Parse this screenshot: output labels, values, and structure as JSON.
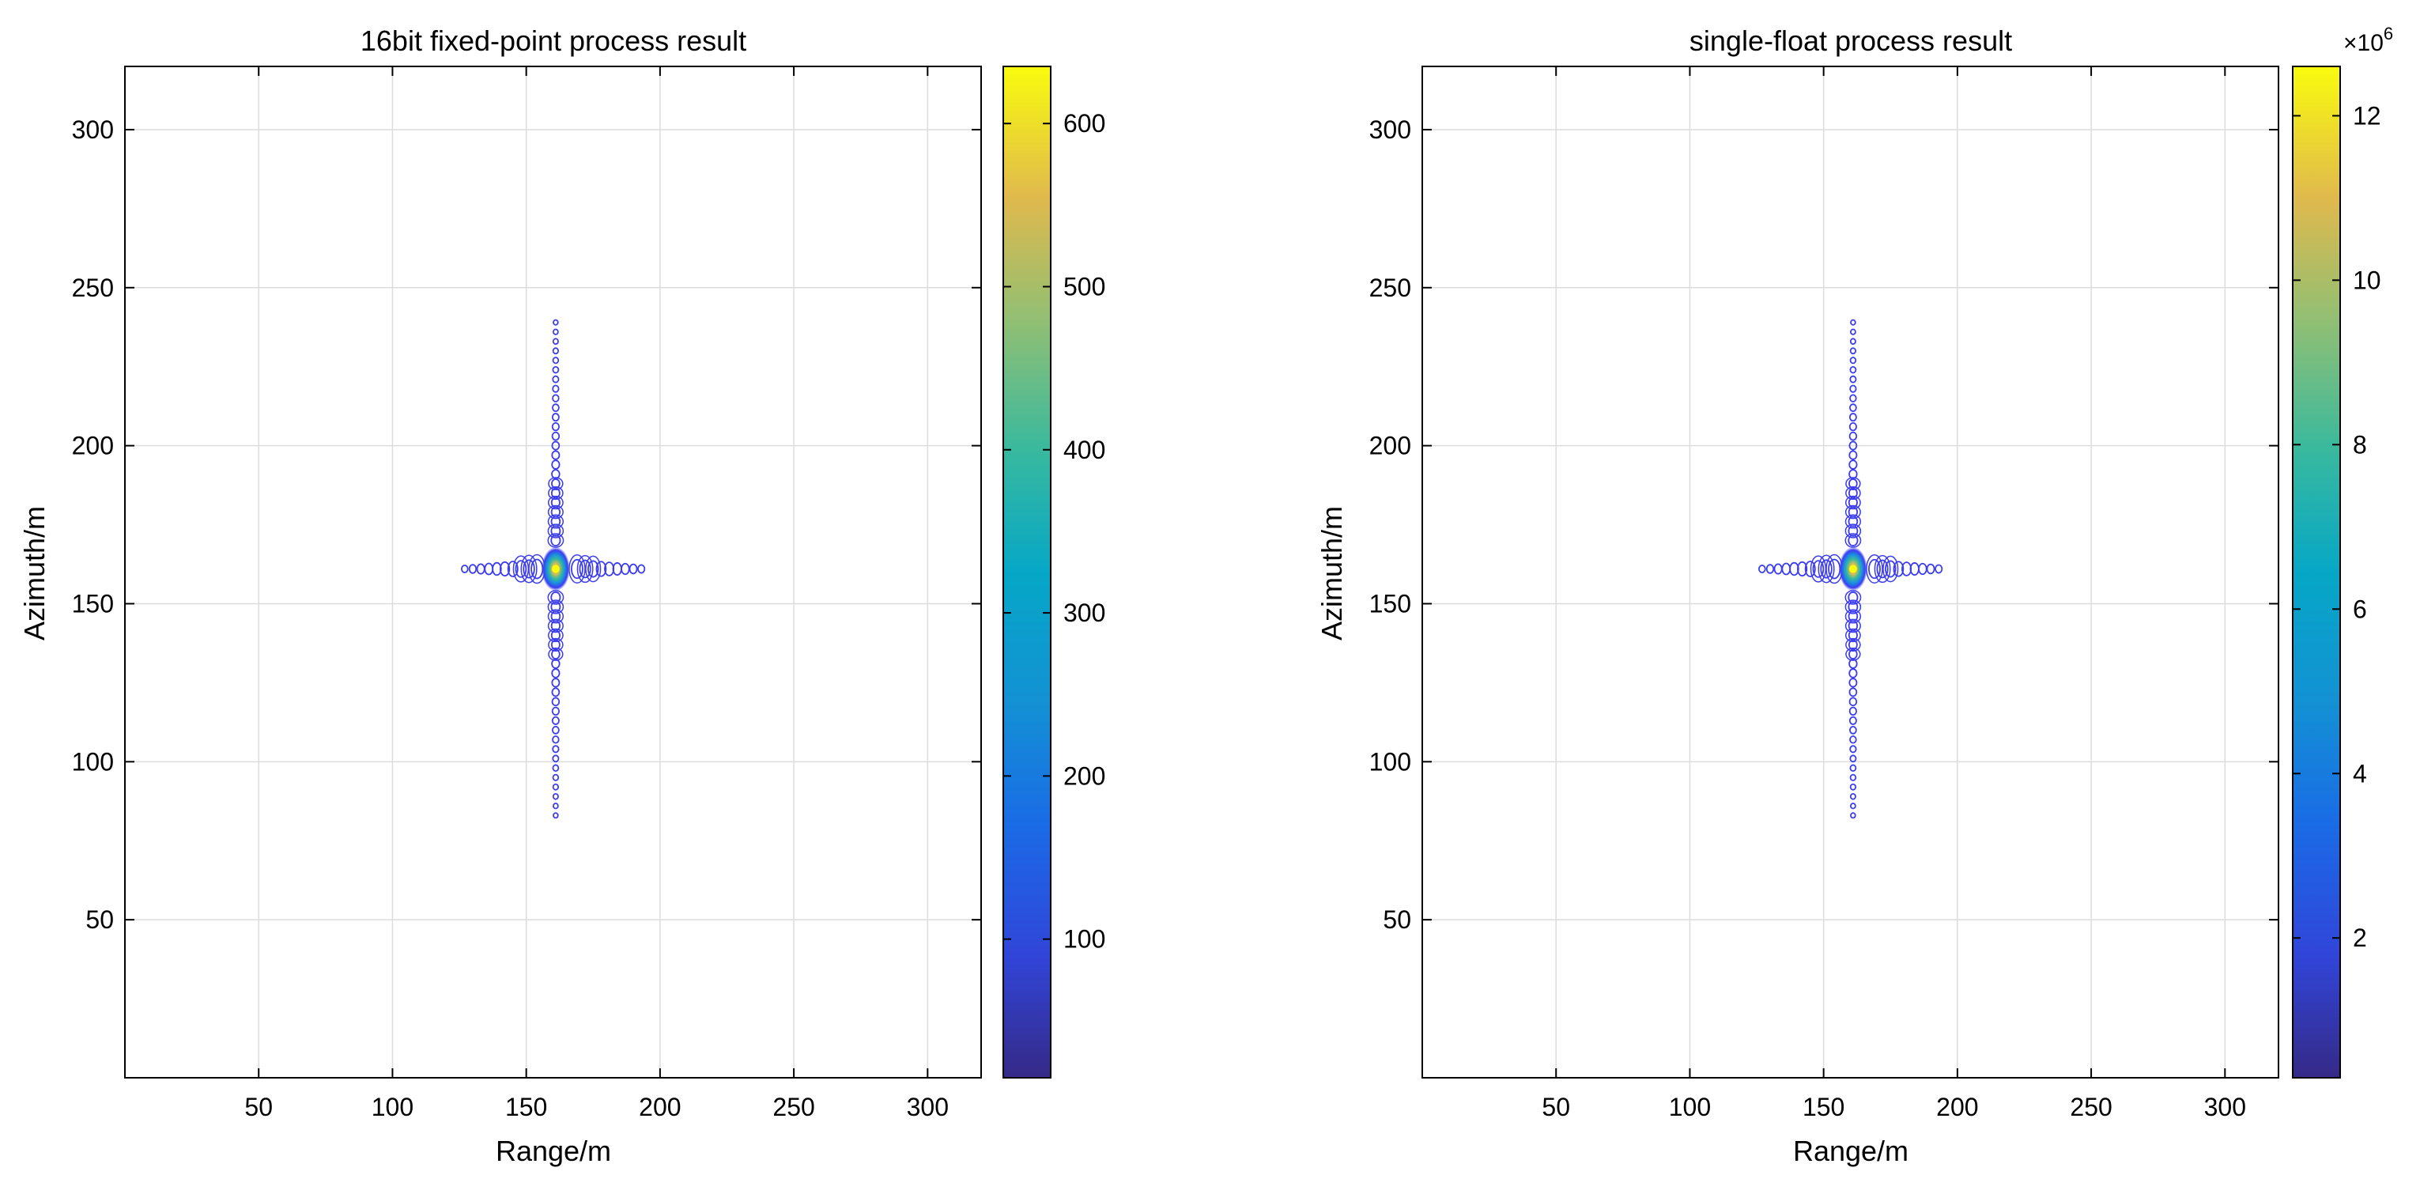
{
  "chart_data": [
    {
      "type": "contour",
      "title": "16bit fixed-point process result",
      "xlabel": "Range/m",
      "ylabel": "Azimuth/m",
      "xlim": [
        0,
        320
      ],
      "ylim": [
        0,
        320
      ],
      "xticks": [
        50,
        100,
        150,
        200,
        250,
        300
      ],
      "yticks": [
        50,
        100,
        150,
        200,
        250,
        300
      ],
      "grid": true,
      "peak": {
        "x": 161,
        "y": 161,
        "value": 630
      },
      "azimuth_sidelobe_extent": [
        83,
        239
      ],
      "range_sidelobe_extent": [
        127,
        195
      ],
      "colorbar": {
        "min": 15,
        "max": 635,
        "ticks": [
          100,
          200,
          300,
          400,
          500,
          600
        ],
        "tick_labels": [
          "100",
          "200",
          "300",
          "400",
          "500",
          "600"
        ],
        "exponent_label": "",
        "colormap": "parula"
      }
    },
    {
      "type": "contour",
      "title": "single-float process result",
      "xlabel": "Range/m",
      "ylabel": "Azimuth/m",
      "xlim": [
        0,
        320
      ],
      "ylim": [
        0,
        320
      ],
      "xticks": [
        50,
        100,
        150,
        200,
        250,
        300
      ],
      "yticks": [
        50,
        100,
        150,
        200,
        250,
        300
      ],
      "grid": true,
      "peak": {
        "x": 161,
        "y": 161,
        "value": 12.4
      },
      "azimuth_sidelobe_extent": [
        83,
        239
      ],
      "range_sidelobe_extent": [
        127,
        195
      ],
      "colorbar": {
        "min": 0.3,
        "max": 12.6,
        "ticks": [
          2,
          4,
          6,
          8,
          10,
          12
        ],
        "tick_labels": [
          "2",
          "4",
          "6",
          "8",
          "10",
          "12"
        ],
        "exponent_label": "×10",
        "exponent_power": "6",
        "colormap": "parula"
      }
    }
  ],
  "colors": {
    "contour_line": "#3d3df0",
    "grid": "#dcdcdc",
    "axes": "#000000",
    "parula": [
      "#352a87",
      "#0f5cdd",
      "#1481d6",
      "#06a4ca",
      "#2eb7a4",
      "#87bf77",
      "#d1bb59",
      "#fec832",
      "#f9fb0e"
    ]
  }
}
